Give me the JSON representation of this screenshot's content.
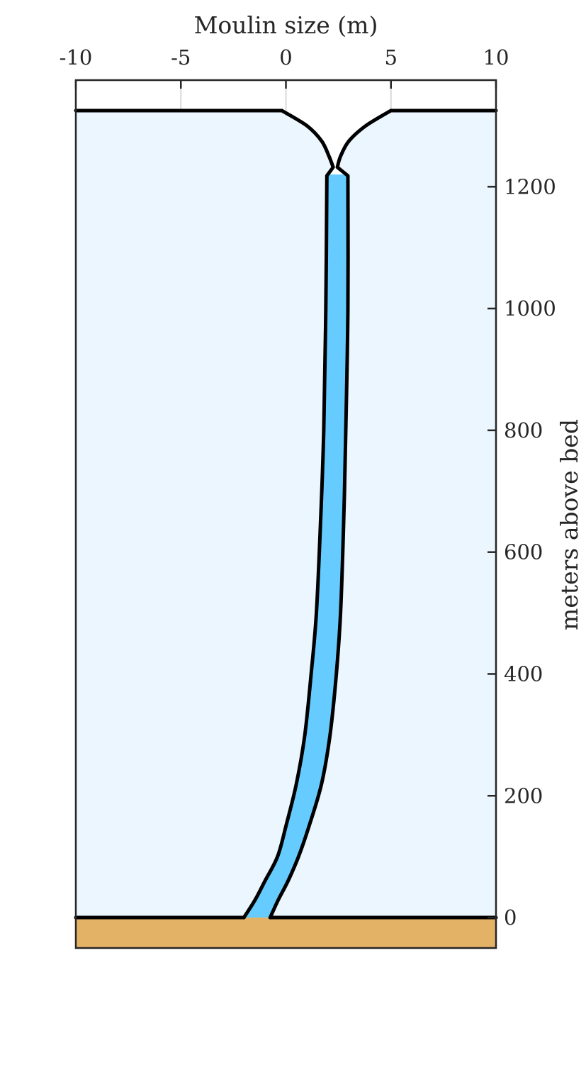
{
  "chart_data": {
    "type": "area",
    "title": "",
    "xlabel": "Moulin size (m)",
    "ylabel": "meters above bed",
    "x_axis_position": "top",
    "y_axis_position": "right",
    "xlim": [
      -10,
      10
    ],
    "ylim": [
      -50,
      1375
    ],
    "xticks": [
      -10,
      -5,
      0,
      5,
      10
    ],
    "xtick_labels": [
      "-10",
      "-5",
      "0",
      "5",
      "10"
    ],
    "yticks": [
      0,
      200,
      400,
      600,
      800,
      1000,
      1200
    ],
    "ytick_labels": [
      "0",
      "200",
      "400",
      "600",
      "800",
      "1000",
      "1200"
    ],
    "ice_surface_elevation": 1325,
    "bed_elevation": 0,
    "water_level": 1220,
    "colors": {
      "ice": "#ecf6fe",
      "water": "#66ccff",
      "bedrock": "#e4b266",
      "outline": "#000000",
      "axis": "#262626"
    },
    "series": [
      {
        "name": "",
        "role": "moulin-left-wall",
        "x": [
          -0.2,
          1.0,
          1.7,
          2.05,
          2.25,
          1.95,
          1.9,
          1.8,
          1.65,
          1.45,
          1.2,
          0.9,
          0.5,
          0.0,
          -0.4,
          -1.0,
          -1.45,
          -2.0
        ],
        "y": [
          1325,
          1300,
          1275,
          1250,
          1232,
          1218,
          1000,
          800,
          650,
          500,
          400,
          300,
          220,
          150,
          100,
          60,
          30,
          0
        ]
      },
      {
        "name": "",
        "role": "moulin-right-wall",
        "x": [
          5.0,
          3.8,
          3.0,
          2.6,
          2.45,
          2.95,
          2.95,
          2.85,
          2.75,
          2.6,
          2.4,
          2.1,
          1.7,
          1.1,
          0.6,
          0.1,
          -0.35,
          -0.75
        ],
        "y": [
          1325,
          1300,
          1275,
          1250,
          1232,
          1218,
          1000,
          800,
          650,
          500,
          400,
          300,
          220,
          150,
          100,
          60,
          30,
          0
        ]
      }
    ]
  }
}
